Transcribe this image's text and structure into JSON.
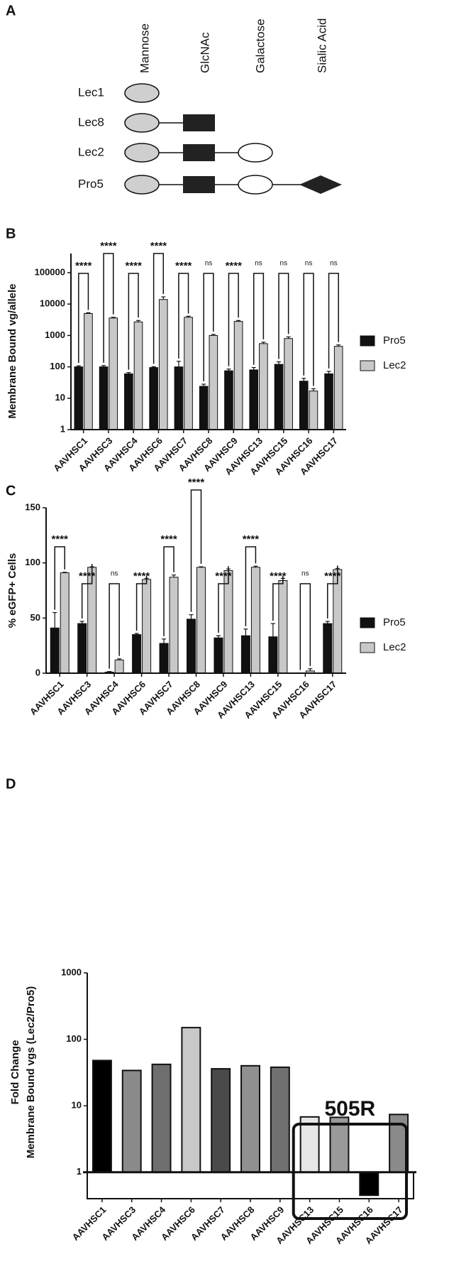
{
  "diagram": {
    "label": "A",
    "columns": [
      "Mannose",
      "GlcNAc",
      "Galactose",
      "Sialic Acid"
    ],
    "rows": [
      "Lec1",
      "Lec8",
      "Lec2",
      "Pro5"
    ]
  },
  "chart_data": [
    {
      "type": "grouped_bar",
      "label": "B",
      "ylabel": "Membrane Bound vg/allele",
      "log_scale": true,
      "categories": [
        "AAVHSC1",
        "AAVHSC3",
        "AAVHSC4",
        "AAVHSC6",
        "AAVHSC7",
        "AAVHSC8",
        "AAVHSC9",
        "AAVHSC13",
        "AAVHSC15",
        "AAVHSC16",
        "AAVHSC17"
      ],
      "series": [
        {
          "name": "Pro5",
          "color": "#111111",
          "values": [
            100,
            100,
            60,
            95,
            100,
            24,
            75,
            80,
            120,
            35,
            60
          ],
          "errors": [
            8,
            10,
            6,
            6,
            50,
            4,
            10,
            15,
            25,
            8,
            12
          ]
        },
        {
          "name": "Lec2",
          "color": "#c8c8c8",
          "values": [
            5000,
            3600,
            2700,
            14000,
            3800,
            1000,
            2800,
            550,
            800,
            17,
            450
          ],
          "errors": [
            300,
            200,
            300,
            3000,
            300,
            80,
            200,
            60,
            100,
            3,
            50
          ]
        }
      ],
      "ylim": [
        1,
        100000
      ],
      "yticks": [
        1,
        10,
        100,
        1000,
        10000,
        100000
      ],
      "significance": [
        "****",
        "****",
        "****",
        "****",
        "****",
        "ns",
        "****",
        "ns",
        "ns",
        "ns",
        "ns"
      ]
    },
    {
      "type": "grouped_bar",
      "label": "C",
      "ylabel": "% eGFP+ Cells",
      "log_scale": false,
      "categories": [
        "AAVHSC1",
        "AAVHSC3",
        "AAVHSC4",
        "AAVHSC6",
        "AAVHSC7",
        "AAVHSC8",
        "AAVHSC9",
        "AAVHSC13",
        "AAVHSC15",
        "AAVHSC16",
        "AAVHSC17"
      ],
      "series": [
        {
          "name": "Pro5",
          "color": "#111111",
          "values": [
            41,
            45,
            1,
            35,
            27,
            49,
            32,
            34,
            33,
            0,
            45
          ],
          "errors": [
            14,
            2,
            0.5,
            1,
            4,
            4,
            2,
            6,
            12,
            0.3,
            2
          ]
        },
        {
          "name": "Lec2",
          "color": "#c8c8c8",
          "values": [
            91,
            96,
            12,
            85,
            87,
            96,
            93,
            96,
            84,
            2,
            94
          ],
          "errors": [
            0.5,
            0.5,
            1,
            1,
            2,
            0.5,
            1.5,
            1,
            2,
            2,
            1
          ]
        }
      ],
      "ylim": [
        0,
        150
      ],
      "yticks": [
        0,
        50,
        100,
        150
      ],
      "significance": [
        "****",
        "****",
        "ns",
        "****",
        "****",
        "****",
        "****",
        "****",
        "****",
        "ns",
        "****"
      ]
    },
    {
      "type": "bar",
      "label": "D",
      "ylabel": [
        "Fold Change",
        "Membrane Bound vgs (Lec2/Pro5)"
      ],
      "log_scale": true,
      "categories": [
        "AAVHSC1",
        "AAVHSC3",
        "AAVHSC4",
        "AAVHSC6",
        "AAVHSC7",
        "AAVHSC8",
        "AAVHSC9",
        "AAVHSC13",
        "AAVHSC15",
        "AAVHSC16",
        "AAVHSC17"
      ],
      "values": [
        48,
        34,
        42,
        150,
        36,
        40,
        38,
        6.8,
        6.7,
        0.45,
        7.4
      ],
      "colors": [
        "#000000",
        "#8a8a8a",
        "#6e6e6e",
        "#c8c8c8",
        "#4a4a4a",
        "#909090",
        "#707070",
        "#e6e6e6",
        "#9a9a9a",
        "#000000",
        "#8a8a8a"
      ],
      "ylim": [
        0.4,
        1000
      ],
      "yticks": [
        1,
        10,
        100,
        1000
      ],
      "annotation": "505R"
    }
  ]
}
